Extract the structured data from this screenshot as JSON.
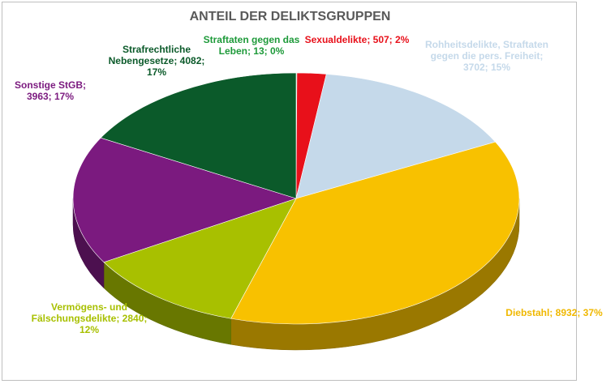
{
  "chart_data": {
    "type": "pie",
    "title": "ANTEIL DER DELIKTSGRUPPEN",
    "values": [
      13,
      507,
      3702,
      8932,
      2840,
      3963,
      4082
    ],
    "value_labels": [
      "Straftaten gegen das Leben; 13; 0%",
      "Sexualdelikte; 507; 2%",
      "Rohheitsdelikte, Straftaten gegen die pers. Freiheit; 3702; 15%",
      "Diebstahl; 8932; 37%",
      "Vermögens- und Fälschungsdelikte; 2840; 12%",
      "Sonstige StGB; 3963; 17%",
      "Strafrechtliche Nebengesetze; 4082; 17%"
    ],
    "colors": [
      "#2e9e3e",
      "#e8101a",
      "#c5d9ea",
      "#f8c100",
      "#a8c000",
      "#7b1a7f",
      "#0b5a2a"
    ]
  }
}
